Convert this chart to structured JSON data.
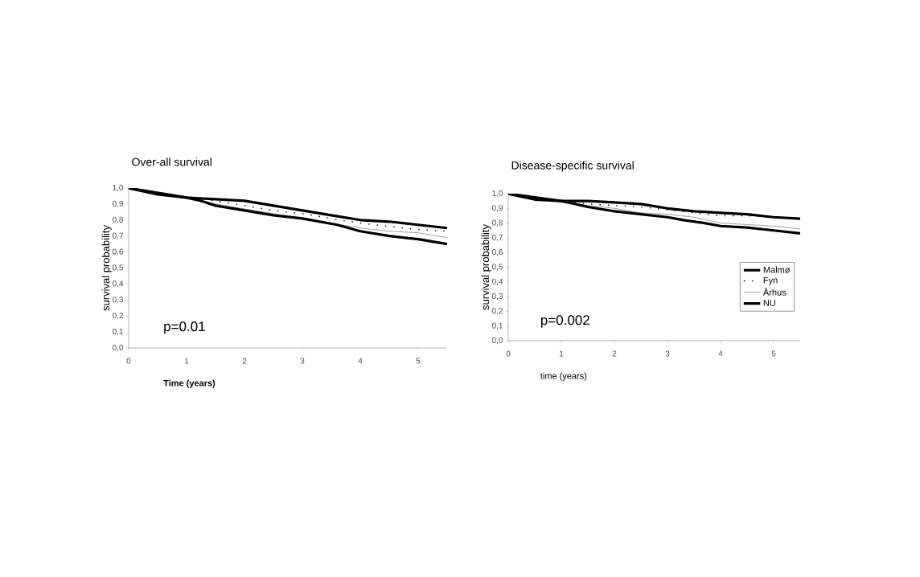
{
  "chart_data": [
    {
      "type": "line",
      "title": "Over-all survival",
      "xlabel": "**Time (years)**",
      "ylabel": "survival probability",
      "xlim": [
        0,
        5.5
      ],
      "ylim": [
        0,
        1
      ],
      "xticks": [
        0,
        1,
        2,
        3,
        4,
        5
      ],
      "yticks": [
        {
          "value": 0,
          "label": "0,0"
        },
        {
          "value": 0.1,
          "label": "0,1"
        },
        {
          "value": 0.2,
          "label": "0,2"
        },
        {
          "value": 0.3,
          "label": "0,3"
        },
        {
          "value": 0.4,
          "label": "0,4"
        },
        {
          "value": 0.5,
          "label": "0,5"
        },
        {
          "value": 0.6,
          "label": "0,6"
        },
        {
          "value": 0.7,
          "label": "0,7"
        },
        {
          "value": 0.8,
          "label": "0,8"
        },
        {
          "value": 0.9,
          "label": "0,9"
        },
        {
          "value": 1,
          "label": "1,0"
        }
      ],
      "annotations": [
        "p=0.01"
      ],
      "marker": "none",
      "series": [
        {
          "color": "#000000",
          "line_style": "solid",
          "x": [
            0,
            0.5,
            1,
            1.5,
            2,
            2.5,
            3,
            3.5,
            4,
            4.5,
            5,
            5.5
          ],
          "values": [
            1.0,
            0.96,
            0.94,
            0.93,
            0.92,
            0.89,
            0.86,
            0.83,
            0.8,
            0.79,
            0.77,
            0.75
          ]
        },
        {
          "color": "#000000",
          "line_style": "dotted",
          "x": [
            0,
            1,
            1.5,
            2,
            2.5,
            3,
            3.5,
            4,
            4.5,
            5,
            5.5
          ],
          "values": [
            1.0,
            0.94,
            0.92,
            0.89,
            0.86,
            0.84,
            0.81,
            0.78,
            0.76,
            0.74,
            0.73
          ]
        },
        {
          "color": "#404040",
          "line_style": "solid",
          "x": [
            0,
            1,
            1.5,
            2,
            2.5,
            3,
            3.5,
            4,
            4.5,
            5,
            5.5
          ],
          "values": [
            1.0,
            0.94,
            0.9,
            0.87,
            0.84,
            0.81,
            0.78,
            0.75,
            0.73,
            0.72,
            0.69
          ]
        },
        {
          "color": "#000000",
          "line_style": "solid",
          "x": [
            0,
            1,
            1.25,
            1.5,
            2,
            2.5,
            3,
            3.3,
            3.6,
            4,
            4.5,
            5,
            5.5
          ],
          "values": [
            1.0,
            0.94,
            0.92,
            0.89,
            0.86,
            0.83,
            0.81,
            0.79,
            0.77,
            0.73,
            0.7,
            0.68,
            0.65
          ]
        }
      ]
    },
    {
      "type": "line",
      "title": "Disease-specific survival",
      "xlabel": "time (years)",
      "ylabel": "survival probability",
      "xlim": [
        0,
        5.5
      ],
      "ylim": [
        0,
        1
      ],
      "xticks": [
        0,
        1,
        2,
        3,
        4,
        5
      ],
      "yticks": [
        {
          "value": 0,
          "label": "0,0"
        },
        {
          "value": 0.1,
          "label": "0,1"
        },
        {
          "value": 0.2,
          "label": "0,2"
        },
        {
          "value": 0.3,
          "label": "0,3"
        },
        {
          "value": 0.4,
          "label": "0,4"
        },
        {
          "value": 0.5,
          "label": "0,5"
        },
        {
          "value": 0.6,
          "label": "0,6"
        },
        {
          "value": 0.7,
          "label": "0,7"
        },
        {
          "value": 0.8,
          "label": "0,8"
        },
        {
          "value": 0.9,
          "label": "0,9"
        },
        {
          "value": 1,
          "label": "1,0"
        }
      ],
      "annotations": [
        "p=0.002"
      ],
      "marker": "none",
      "legend": "bottom right",
      "series": [
        {
          "name": "Malmø",
          "color": "#000000",
          "line_style": "solid",
          "x": [
            0,
            0.5,
            1,
            1.5,
            2,
            2.5,
            3,
            3.5,
            4,
            4.5,
            5,
            5.5
          ],
          "values": [
            1.0,
            0.96,
            0.95,
            0.95,
            0.94,
            0.93,
            0.9,
            0.88,
            0.87,
            0.86,
            0.84,
            0.83
          ]
        },
        {
          "name": "Fyn",
          "color": "#000000",
          "line_style": "dotted",
          "x": [
            0,
            0.5,
            1,
            1.5,
            2,
            2.5,
            3,
            3.5,
            4,
            4.5,
            5,
            5.5
          ],
          "values": [
            1.0,
            0.97,
            0.95,
            0.93,
            0.92,
            0.91,
            0.89,
            0.87,
            0.85,
            0.85,
            0.84,
            0.83
          ]
        },
        {
          "name": "Århus",
          "color": "#404040",
          "line_style": "solid",
          "x": [
            0,
            1,
            1.5,
            2,
            2.5,
            3,
            3.5,
            4,
            4.5,
            5,
            5.5
          ],
          "values": [
            1.0,
            0.95,
            0.92,
            0.9,
            0.87,
            0.86,
            0.84,
            0.8,
            0.79,
            0.78,
            0.76
          ]
        },
        {
          "name": "NU",
          "color": "#000000",
          "line_style": "solid",
          "x": [
            0,
            1,
            1.25,
            1.5,
            2,
            2.5,
            3,
            3.3,
            3.7,
            4,
            4.5,
            5,
            5.5
          ],
          "values": [
            1.0,
            0.95,
            0.93,
            0.91,
            0.88,
            0.86,
            0.84,
            0.82,
            0.8,
            0.78,
            0.77,
            0.75,
            0.73
          ]
        }
      ]
    }
  ]
}
